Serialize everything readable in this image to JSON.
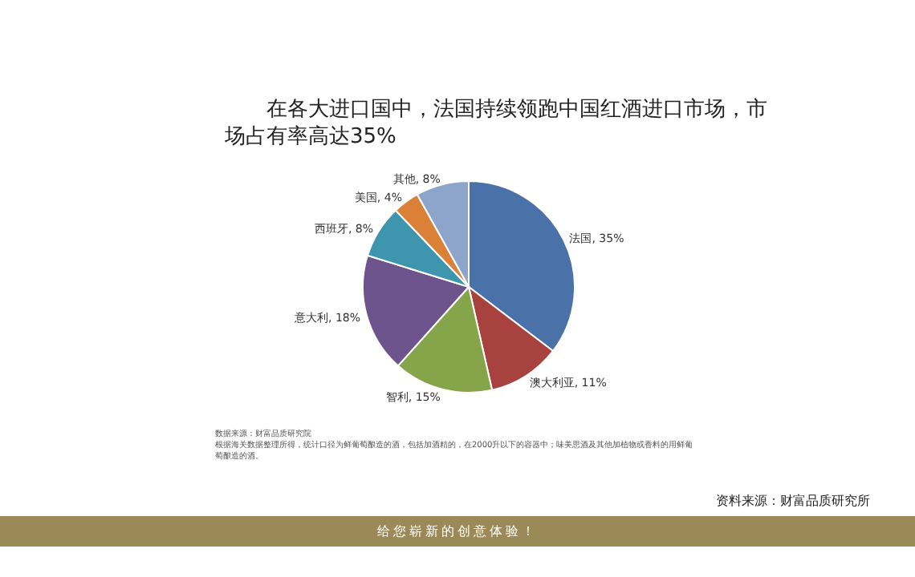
{
  "chart_data": {
    "type": "pie",
    "title": "在各大进口国中，法国持续领跑中国红酒进口市场，市场占有率高达35%",
    "categories": [
      "法国",
      "澳大利亚",
      "智利",
      "意大利",
      "西班牙",
      "美国",
      "其他"
    ],
    "values": [
      35,
      11,
      15,
      18,
      8,
      4,
      8
    ],
    "colors": [
      "#4a72a8",
      "#a8423f",
      "#86a44a",
      "#6e548d",
      "#3d96ae",
      "#da8137",
      "#8ea5cb"
    ],
    "value_labels": [
      ", 35%",
      ", 11%",
      ", 15%",
      ", 18%",
      ", 8%",
      ", 4%",
      ", 8%"
    ],
    "annotations": [
      "数据来源：财富品质研究院",
      "根据海关数据整理所得，统计口径为鲜葡萄酿造的酒，包括加酒精的，在2000升以下的容器中；味美思酒及其他加植物或香料的用鲜葡萄酿造的酒。",
      "资料来源：财富品质研究所",
      "给您崭新的创意体验！"
    ]
  }
}
